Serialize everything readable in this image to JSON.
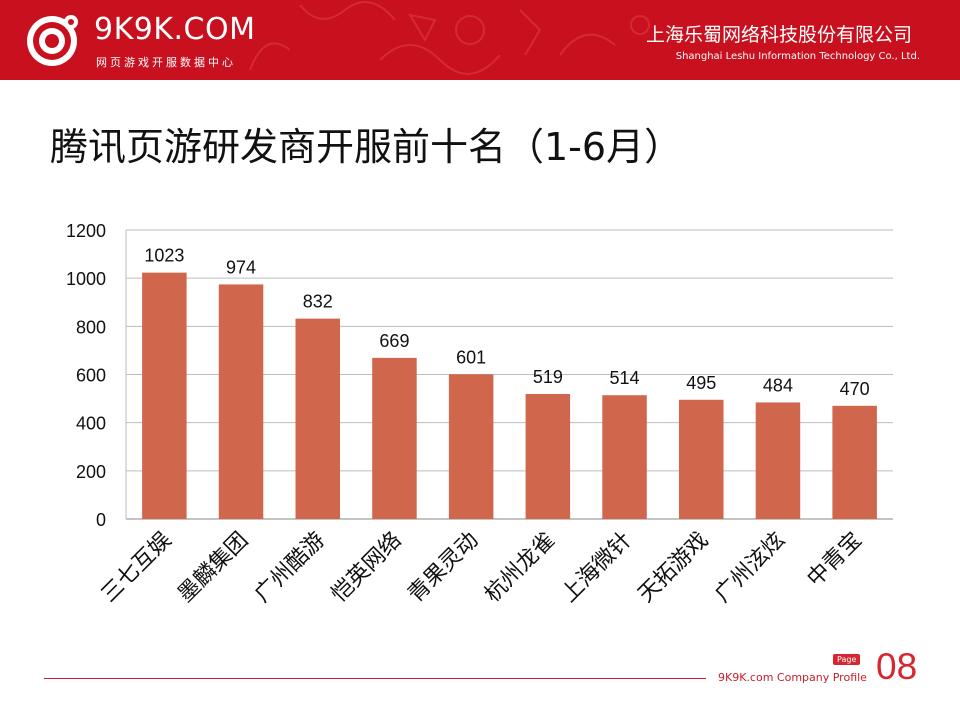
{
  "header": {
    "logo_name": "9K9K.COM",
    "logo_tagline": "网页游戏开服数据中心",
    "company_cn": "上海乐蜀网络科技股份有限公司",
    "company_en": "Shanghai Leshu Information Technology Co., Ltd.",
    "banner_color": "#c8101f"
  },
  "slide_title": "腾讯页游研发商开服前十名（1-6月）",
  "chart_data": {
    "type": "bar",
    "categories": [
      "三七互娱",
      "墨麟集团",
      "广州酷游",
      "恺英网络",
      "青果灵动",
      "杭州龙雀",
      "上海微针",
      "天拓游戏",
      "广州泫炫",
      "中青宝"
    ],
    "values": [
      1023,
      974,
      832,
      669,
      601,
      519,
      514,
      495,
      484,
      470
    ],
    "yticks": [
      0,
      200,
      400,
      600,
      800,
      1000,
      1200
    ],
    "ylim": [
      0,
      1200
    ],
    "bar_color": "#d0664c",
    "grid": true,
    "legend": "none"
  },
  "footer": {
    "text": "9K9K.com Company Profile",
    "page_label": "Page",
    "page_number": "08",
    "accent_color": "#d62631"
  }
}
